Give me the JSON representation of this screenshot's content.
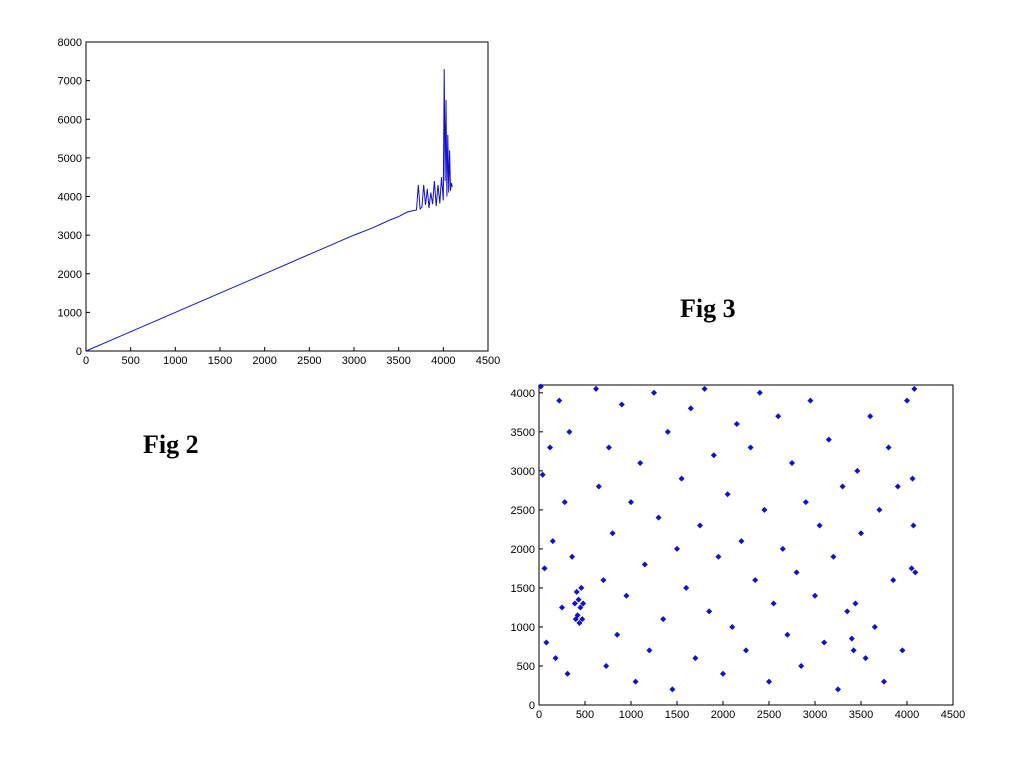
{
  "captions": {
    "fig2": "Fig 2",
    "fig3": "Fig 3"
  },
  "colors": {
    "series": "#1010d0",
    "axis": "#000000",
    "background": "#ffffff"
  },
  "chart_data": [
    {
      "type": "line",
      "title": "",
      "xlabel": "",
      "ylabel": "",
      "xlim": [
        0,
        4500
      ],
      "ylim": [
        0,
        8000
      ],
      "xticks": [
        0,
        500,
        1000,
        1500,
        2000,
        2500,
        3000,
        3500,
        4000,
        4500
      ],
      "yticks": [
        0,
        1000,
        2000,
        3000,
        4000,
        5000,
        6000,
        7000,
        8000
      ],
      "grid": false,
      "series": [
        {
          "points": [
            [
              0,
              0
            ],
            [
              500,
              500
            ],
            [
              1000,
              1000
            ],
            [
              1500,
              1500
            ],
            [
              2000,
              2000
            ],
            [
              2500,
              2500
            ],
            [
              3000,
              3000
            ],
            [
              3200,
              3180
            ],
            [
              3400,
              3390
            ],
            [
              3500,
              3480
            ],
            [
              3600,
              3600
            ],
            [
              3700,
              3650
            ],
            [
              3720,
              4300
            ],
            [
              3740,
              3680
            ],
            [
              3760,
              3720
            ],
            [
              3780,
              4300
            ],
            [
              3800,
              3780
            ],
            [
              3820,
              4200
            ],
            [
              3840,
              3700
            ],
            [
              3860,
              4100
            ],
            [
              3880,
              3800
            ],
            [
              3900,
              4400
            ],
            [
              3920,
              3750
            ],
            [
              3940,
              4300
            ],
            [
              3960,
              3820
            ],
            [
              3980,
              4500
            ],
            [
              4000,
              3900
            ],
            [
              4010,
              7300
            ],
            [
              4020,
              4400
            ],
            [
              4030,
              6500
            ],
            [
              4040,
              4000
            ],
            [
              4050,
              5600
            ],
            [
              4060,
              4100
            ],
            [
              4070,
              5200
            ],
            [
              4080,
              4150
            ],
            [
              4090,
              4350
            ],
            [
              4100,
              4250
            ]
          ]
        }
      ]
    },
    {
      "type": "scatter",
      "title": "",
      "xlabel": "",
      "ylabel": "",
      "xlim": [
        0,
        4500
      ],
      "ylim": [
        0,
        4100
      ],
      "xticks": [
        0,
        500,
        1000,
        1500,
        2000,
        2500,
        3000,
        3500,
        4000,
        4500
      ],
      "yticks": [
        0,
        500,
        1000,
        1500,
        2000,
        2500,
        3000,
        3500,
        4000
      ],
      "grid": false,
      "marker": "diamond",
      "series": [
        {
          "points": [
            [
              20,
              4080
            ],
            [
              40,
              2950
            ],
            [
              60,
              1750
            ],
            [
              80,
              800
            ],
            [
              120,
              3300
            ],
            [
              150,
              2100
            ],
            [
              180,
              600
            ],
            [
              220,
              3900
            ],
            [
              250,
              1250
            ],
            [
              280,
              2600
            ],
            [
              310,
              400
            ],
            [
              330,
              3500
            ],
            [
              360,
              1900
            ],
            [
              390,
              1300
            ],
            [
              400,
              1100
            ],
            [
              410,
              1450
            ],
            [
              420,
              1150
            ],
            [
              430,
              1350
            ],
            [
              440,
              1050
            ],
            [
              450,
              1250
            ],
            [
              460,
              1500
            ],
            [
              470,
              1100
            ],
            [
              480,
              1300
            ],
            [
              620,
              4050
            ],
            [
              650,
              2800
            ],
            [
              700,
              1600
            ],
            [
              730,
              500
            ],
            [
              760,
              3300
            ],
            [
              800,
              2200
            ],
            [
              850,
              900
            ],
            [
              900,
              3850
            ],
            [
              950,
              1400
            ],
            [
              1000,
              2600
            ],
            [
              1050,
              300
            ],
            [
              1100,
              3100
            ],
            [
              1150,
              1800
            ],
            [
              1200,
              700
            ],
            [
              1250,
              4000
            ],
            [
              1300,
              2400
            ],
            [
              1350,
              1100
            ],
            [
              1400,
              3500
            ],
            [
              1450,
              200
            ],
            [
              1500,
              2000
            ],
            [
              1550,
              2900
            ],
            [
              1600,
              1500
            ],
            [
              1650,
              3800
            ],
            [
              1700,
              600
            ],
            [
              1750,
              2300
            ],
            [
              1800,
              4050
            ],
            [
              1850,
              1200
            ],
            [
              1900,
              3200
            ],
            [
              1950,
              1900
            ],
            [
              2000,
              400
            ],
            [
              2050,
              2700
            ],
            [
              2100,
              1000
            ],
            [
              2150,
              3600
            ],
            [
              2200,
              2100
            ],
            [
              2250,
              700
            ],
            [
              2300,
              3300
            ],
            [
              2350,
              1600
            ],
            [
              2400,
              4000
            ],
            [
              2450,
              2500
            ],
            [
              2500,
              300
            ],
            [
              2550,
              1300
            ],
            [
              2600,
              3700
            ],
            [
              2650,
              2000
            ],
            [
              2700,
              900
            ],
            [
              2750,
              3100
            ],
            [
              2800,
              1700
            ],
            [
              2850,
              500
            ],
            [
              2900,
              2600
            ],
            [
              2950,
              3900
            ],
            [
              3000,
              1400
            ],
            [
              3050,
              2300
            ],
            [
              3100,
              800
            ],
            [
              3150,
              3400
            ],
            [
              3200,
              1900
            ],
            [
              3250,
              200
            ],
            [
              3300,
              2800
            ],
            [
              3350,
              1200
            ],
            [
              3400,
              850
            ],
            [
              3420,
              700
            ],
            [
              3440,
              1300
            ],
            [
              3460,
              3000
            ],
            [
              3500,
              2200
            ],
            [
              3550,
              600
            ],
            [
              3600,
              3700
            ],
            [
              3650,
              1000
            ],
            [
              3700,
              2500
            ],
            [
              3750,
              300
            ],
            [
              3800,
              3300
            ],
            [
              3850,
              1600
            ],
            [
              3900,
              2800
            ],
            [
              3950,
              700
            ],
            [
              4000,
              3900
            ],
            [
              4050,
              1750
            ],
            [
              4060,
              2900
            ],
            [
              4070,
              2300
            ],
            [
              4080,
              4050
            ],
            [
              4090,
              1700
            ]
          ]
        }
      ]
    }
  ]
}
